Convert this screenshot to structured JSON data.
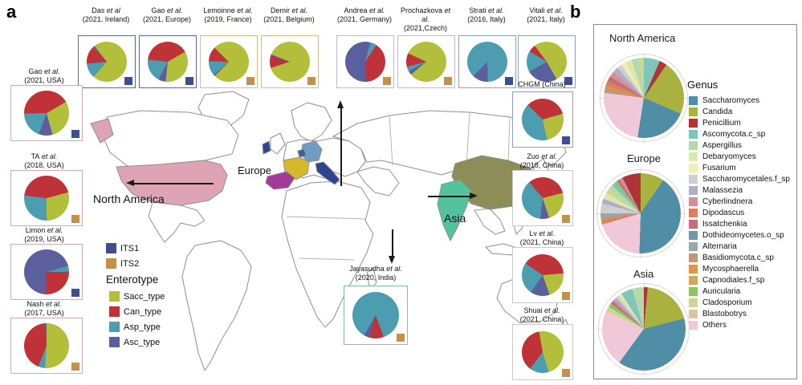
{
  "panel_a": {
    "label": "a",
    "map_labels": {
      "europe": "Europe",
      "north_america": "North America",
      "asia": "Asia"
    },
    "its_legend": [
      {
        "label": "ITS1"
      },
      {
        "label": "ITS2"
      }
    ],
    "enterotype_legend": {
      "title": "Enterotype",
      "items": [
        {
          "label": "Sacc_type"
        },
        {
          "label": "Can_type"
        },
        {
          "label": "Asp_type"
        },
        {
          "label": "Asc_type"
        }
      ]
    },
    "map": {
      "countries": {
        "usa": "#dfa3b6",
        "ireland": "#2f4491",
        "spain": "#a33a9a",
        "france": "#d6b829",
        "germany": "#6f9ec2",
        "belgium": "#3a5ea8",
        "italy": "#2f4491",
        "india": "#52c39e",
        "china": "#8d8d57",
        "outline": "#8f8f8f",
        "land": "#ffffff"
      }
    }
  },
  "panel_b": {
    "label": "b",
    "genus_legend": {
      "title": "Genus",
      "items": [
        {
          "label": "Saccharomyces",
          "color": "#4f8ea6"
        },
        {
          "label": "Candida",
          "color": "#a9b23f"
        },
        {
          "label": "Penicillium",
          "color": "#ad3538"
        },
        {
          "label": "Ascomycota.c_sp",
          "color": "#7fc6b9"
        },
        {
          "label": "Aspergillus",
          "color": "#b5d9ab"
        },
        {
          "label": "Debaryomyces",
          "color": "#dce8ac"
        },
        {
          "label": "Fusarium",
          "color": "#edefb5"
        },
        {
          "label": "Saccharomycetales.f_sp",
          "color": "#cfcfcf"
        },
        {
          "label": "Malassezia",
          "color": "#b2adc7"
        },
        {
          "label": "Cyberlindnera",
          "color": "#d58e97"
        },
        {
          "label": "Dipodascus",
          "color": "#dd7f60"
        },
        {
          "label": "Issatchenkia",
          "color": "#c26e79"
        },
        {
          "label": "Dothideomycetes.o_sp",
          "color": "#7595a8"
        },
        {
          "label": "Alternaria",
          "color": "#92a9b3"
        },
        {
          "label": "Basidiomycota.c_sp",
          "color": "#bf9877"
        },
        {
          "label": "Mycosphaerella",
          "color": "#dc9450"
        },
        {
          "label": "Capnodiales.f_sp",
          "color": "#caa95e"
        },
        {
          "label": "Auricularia",
          "color": "#8fc363"
        },
        {
          "label": "Cladosporium",
          "color": "#cbd797"
        },
        {
          "label": "Blastobotrys",
          "color": "#d7c7a7"
        },
        {
          "label": "Others",
          "color": "#f0c8d8"
        }
      ]
    }
  },
  "chart_data": {
    "type": "pie",
    "enterotype_colors": {
      "Sacc_type": "#b3bf3a",
      "Can_type": "#bf3238",
      "Asp_type": "#4d9db1",
      "Asc_type": "#5c5f9e"
    },
    "its_marker_colors": {
      "ITS1": "#3d4f91",
      "ITS2": "#c4914d"
    },
    "study_pies": [
      {
        "id": "das",
        "group": "top",
        "author": "Das",
        "etal": "et al",
        "detail": "(2021, Ireland)",
        "marker": "ITS1",
        "frame": "#5b6b8c",
        "start_deg": 322,
        "categories": [
          "Sacc_type",
          "Asp_type",
          "Can_type",
          "Asc_type"
        ],
        "values": [
          72,
          12,
          15,
          1
        ]
      },
      {
        "id": "gao_eu",
        "group": "top",
        "author": "Gao",
        "etal": "et al.",
        "detail": "(2021, Europe)",
        "marker": "ITS1",
        "frame": "#5b6b8c",
        "start_deg": 60,
        "categories": [
          "Sacc_type",
          "Asc_type",
          "Asp_type",
          "Can_type"
        ],
        "values": [
          35,
          6,
          19,
          40
        ]
      },
      {
        "id": "lemoinne",
        "group": "top",
        "author": "Lemoinne",
        "etal": "et al.",
        "detail": "(2019, France)",
        "marker": "ITS2",
        "frame": "#d8b98a",
        "start_deg": 315,
        "categories": [
          "Sacc_type",
          "Asc_type",
          "Asp_type",
          "Can_type"
        ],
        "values": [
          75,
          1,
          12,
          12
        ]
      },
      {
        "id": "demir",
        "group": "top",
        "author": "Demir",
        "etal": "et al.",
        "detail": "(2021, Belgium)",
        "marker": "ITS2",
        "frame": "#d8b98a",
        "start_deg": 252,
        "categories": [
          "Can_type",
          "Asc_type",
          "Sacc_type"
        ],
        "values": [
          10,
          1,
          89
        ]
      },
      {
        "id": "andrea",
        "group": "top",
        "author": "Andrea",
        "etal": "et al.",
        "detail": "(2021, Germany)",
        "marker": "ITS2",
        "frame": "#bdbdbd",
        "start_deg": 15,
        "categories": [
          "Asp_type",
          "Can_type",
          "Asc_type"
        ],
        "values": [
          5,
          41,
          54
        ]
      },
      {
        "id": "prochazkova",
        "group": "top",
        "author": "Prochazkova",
        "etal": "et al.",
        "detail": "(2021,Czech)",
        "marker": "ITS2",
        "frame": "#bdbdbd",
        "start_deg": 295,
        "categories": [
          "Sacc_type",
          "Asc_type",
          "Asp_type",
          "Can_type"
        ],
        "values": [
          82,
          3,
          4,
          11
        ]
      },
      {
        "id": "strati",
        "group": "top",
        "author": "Strati",
        "etal": "et al.",
        "detail": "(2016, Italy)",
        "marker": "ITS1",
        "frame": "#8ba2c0",
        "start_deg": 225,
        "categories": [
          "Asp_type",
          "Asc_type"
        ],
        "values": [
          87,
          13
        ]
      },
      {
        "id": "vitali",
        "group": "top",
        "author": "Vitali",
        "etal": "et al.",
        "detail": "(2021, Italy)",
        "marker": "ITS1",
        "frame": "#8ba2c0",
        "start_deg": 323,
        "categories": [
          "Sacc_type",
          "Asc_type",
          "Asp_type",
          "Can_type"
        ],
        "values": [
          52,
          25,
          17,
          6
        ]
      },
      {
        "id": "gao_usa",
        "group": "left",
        "author": "Gao",
        "etal": "et al.",
        "detail": "(2021, USA)",
        "marker": "ITS1",
        "frame": "#dba8b0",
        "start_deg": 60,
        "categories": [
          "Sacc_type",
          "Asc_type",
          "Asp_type",
          "Can_type"
        ],
        "values": [
          29,
          10,
          19,
          42
        ]
      },
      {
        "id": "ta",
        "group": "left",
        "author": "TA",
        "etal": "et al.",
        "detail": "(2018, USA)",
        "marker": "ITS2",
        "frame": "#dba8b0",
        "start_deg": 75,
        "categories": [
          "Sacc_type",
          "Asp_type",
          "Can_type"
        ],
        "values": [
          29,
          27,
          44
        ]
      },
      {
        "id": "limon",
        "group": "left",
        "author": "Limon",
        "etal": "et al.",
        "detail": "(2019, USA)",
        "marker": "ITS1",
        "frame": "#dba8b0",
        "start_deg": 75,
        "categories": [
          "Asp_type",
          "Can_type",
          "Asc_type"
        ],
        "values": [
          4,
          26,
          70
        ]
      },
      {
        "id": "nash",
        "group": "left",
        "author": "Nash",
        "etal": "et al.",
        "detail": "(2017, USA)",
        "marker": "ITS2",
        "frame": "#dba8b0",
        "start_deg": 0,
        "categories": [
          "Sacc_type",
          "Asp_type",
          "Can_type",
          "Asc_type"
        ],
        "values": [
          51,
          5,
          42.5,
          1.5
        ]
      },
      {
        "id": "chgm",
        "group": "right",
        "author": "CHGM (China)",
        "etal": "",
        "detail": "",
        "marker": "ITS1",
        "frame": "#8ba2c0",
        "start_deg": 315,
        "categories": [
          "Can_type",
          "Sacc_type",
          "Asp_type"
        ],
        "values": [
          33,
          26,
          41
        ]
      },
      {
        "id": "zuo",
        "group": "right",
        "author": "Zuo",
        "etal": "et al.",
        "detail": "(2018, China)",
        "marker": "ITS2",
        "frame": "#c9c9c9",
        "start_deg": 320,
        "categories": [
          "Can_type",
          "Sacc_type",
          "Asc_type",
          "Asp_type"
        ],
        "values": [
          32,
          24,
          7,
          37
        ]
      },
      {
        "id": "lv",
        "group": "right",
        "author": "Lv",
        "etal": "et al.",
        "detail": "(2021, China)",
        "marker": "ITS2",
        "frame": "#c9c9c9",
        "start_deg": 85,
        "categories": [
          "Sacc_type",
          "Asc_type",
          "Asp_type",
          "Can_type"
        ],
        "values": [
          21,
          15,
          25,
          39
        ]
      },
      {
        "id": "shuai",
        "group": "right",
        "author": "Shuai",
        "etal": "et al.",
        "detail": "(2021, China)",
        "marker": "ITS2",
        "frame": "#c9c9c9",
        "start_deg": 350,
        "categories": [
          "Sacc_type",
          "Asp_type",
          "Can_type"
        ],
        "values": [
          48,
          15,
          37
        ]
      },
      {
        "id": "jayasudha",
        "group": "india",
        "author": "Jayasudha",
        "etal": "et al.",
        "detail": "(2020, India)",
        "marker": "ITS2",
        "frame": "#7fbfb4",
        "start_deg": 160,
        "categories": [
          "Can_type",
          "Asc_type",
          "Asp_type"
        ],
        "values": [
          10,
          4,
          86
        ]
      }
    ],
    "region_pies": [
      {
        "title": "North America",
        "categories": [
          "Ascomycota.c_sp",
          "Penicillium",
          "Candida",
          "Saccharomyces",
          "Others",
          "Basidiomycota.c_sp",
          "Mycosphaerella",
          "Dipodascus",
          "Issatchenkia",
          "Cyberlindnera",
          "Malassezia",
          "Saccharomycetales.f_sp",
          "Fusarium",
          "Debaryomyces",
          "Aspergillus",
          "Cladosporium"
        ],
        "values": [
          6.5,
          3,
          22,
          21,
          24.5,
          2,
          1,
          2,
          2,
          2,
          2.5,
          2,
          2,
          2.5,
          3,
          2
        ]
      },
      {
        "title": "Europe",
        "categories": [
          "Candida",
          "Saccharomyces",
          "Others",
          "Dipodascus",
          "Basidiomycota.c_sp",
          "Alternaria",
          "Saccharomycetales.f_sp",
          "Malassezia",
          "Debaryomyces",
          "Cladosporium",
          "Aspergillus",
          "Ascomycota.c_sp",
          "Auricularia",
          "Issatchenkia",
          "Cyberlindnera",
          "Penicillium"
        ],
        "values": [
          9.5,
          41,
          20,
          1.5,
          1.5,
          1.5,
          4,
          2,
          2.5,
          2,
          2,
          1.5,
          1,
          1,
          1.5,
          7.5
        ]
      },
      {
        "title": "Asia",
        "categories": [
          "Penicillium",
          "Candida",
          "Saccharomyces",
          "Others",
          "Cladosporium",
          "Auricularia",
          "Issatchenkia",
          "Cyberlindnera",
          "Malassezia",
          "Saccharomycetales.f_sp",
          "Debaryomyces",
          "Ascomycota.c_sp",
          "Aspergillus"
        ],
        "values": [
          1.5,
          19.5,
          39,
          22,
          2,
          1.5,
          1,
          1,
          1,
          1,
          1.5,
          4.5,
          4.5
        ]
      }
    ]
  }
}
